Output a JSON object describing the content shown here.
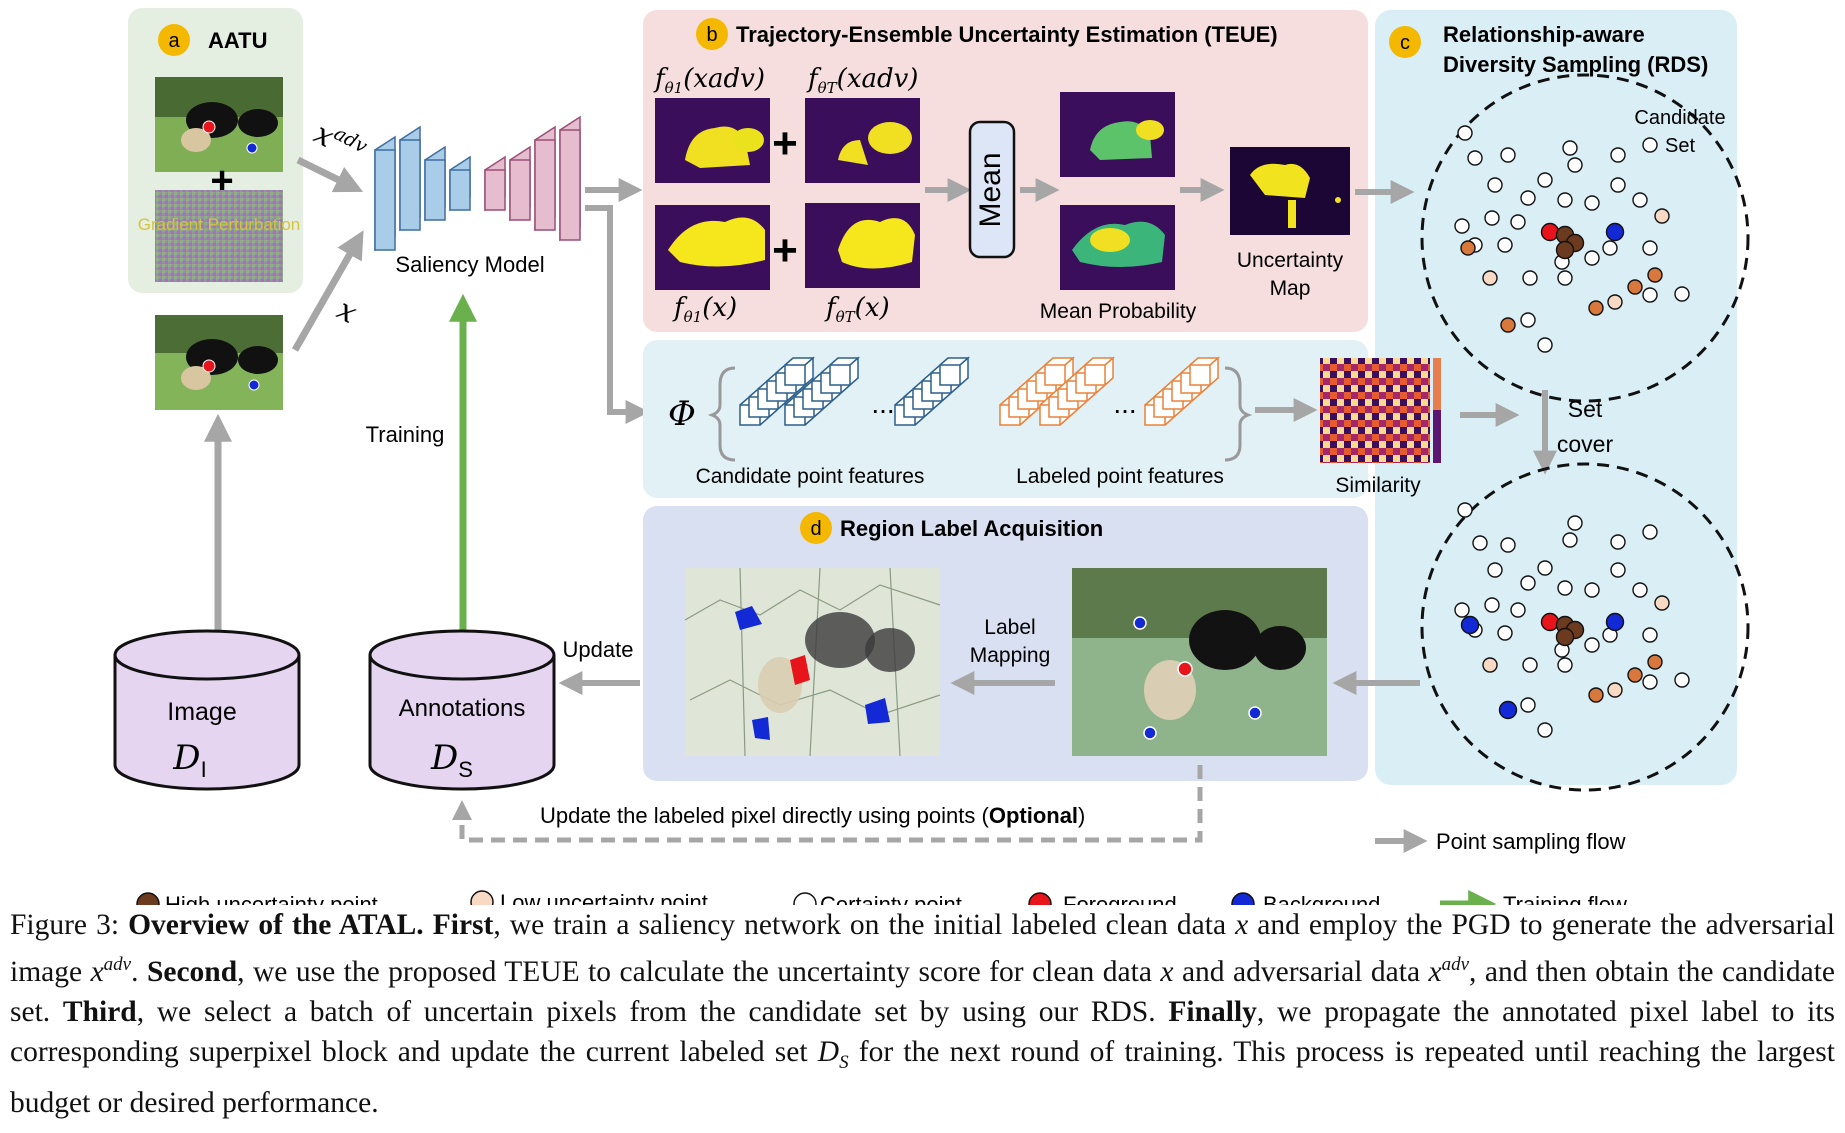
{
  "panels": {
    "a": {
      "badge": "a",
      "title": "AATU",
      "noise_label": "Gradient Perturbation",
      "input_adv": "x",
      "input_adv_sup": "adv",
      "input_clean": "x"
    },
    "b": {
      "badge": "b",
      "title": "Trajectory-Ensemble Uncertainty Estimation (TEUE)",
      "f1_adv": "f",
      "f1_adv_sub": "θ1",
      "f1_adv_arg": "(xadv)",
      "fT_adv": "f",
      "fT_adv_sub": "θT",
      "fT_adv_arg": "(xadv)",
      "f1_clean": "f",
      "f1_clean_sub": "θ1",
      "f1_clean_arg": "(x)",
      "fT_clean": "f",
      "fT_clean_sub": "θT",
      "fT_clean_arg": "(x)",
      "plus": "+",
      "mean": "Mean",
      "mean_probability": "Mean  Probability",
      "uncertainty_map_line1": "Uncertainty",
      "uncertainty_map_line2": "Map"
    },
    "c": {
      "badge": "c",
      "title_line1": "Relationship-aware",
      "title_line2": "Diversity Sampling (RDS)",
      "candidate_set_line1": "Candidate",
      "candidate_set_line2": "Set",
      "set_cover_line1": "Set",
      "set_cover_line2": "cover"
    },
    "d": {
      "badge": "d",
      "title": "Region Label Acquisition",
      "label_mapping_line1": "Label",
      "label_mapping_line2": "Mapping"
    }
  },
  "features": {
    "phi": "Φ",
    "candidate": "Candidate point features",
    "labeled": "Labeled point features",
    "dots": "...",
    "similarity": "Similarity"
  },
  "model": {
    "label": "Saliency Model",
    "training": "Training"
  },
  "databases": {
    "image": {
      "label": "Image",
      "symbol": "D",
      "sub": "I"
    },
    "annotations": {
      "label": "Annotations",
      "symbol": "D",
      "sub": "S"
    }
  },
  "flows": {
    "update": "Update",
    "optional_prefix": "Update the labeled pixel directly using points  (",
    "optional_bold": "Optional",
    "optional_suffix": ")",
    "point_sampling_flow": "Point sampling flow"
  },
  "legend": [
    {
      "label": "High uncertainty point",
      "color": "#6b3a1f",
      "kind": "dot"
    },
    {
      "label": "Low uncertainty point",
      "color": "#f7d9c4",
      "kind": "dot"
    },
    {
      "label": "Certainty point",
      "color": "#ffffff",
      "kind": "dot"
    },
    {
      "label": "Foreground",
      "color": "#e8141b",
      "kind": "dot"
    },
    {
      "label": "Background",
      "color": "#1429d6",
      "kind": "dot"
    },
    {
      "label": "Training flow",
      "color": "#6ab04c",
      "kind": "arrow"
    }
  ],
  "caption": {
    "fig_label": "Figure 3: ",
    "bold1": "Overview of the ATAL. First",
    "t1": ", we train a saliency network on the initial labeled clean data ",
    "v1": "x",
    "t2": " and employ the PGD to generate the adversarial image ",
    "v2": "x",
    "v2sup": "adv",
    "t3": ". ",
    "bold2": "Second",
    "t4": ", we use the proposed TEUE to calculate the uncertainty score for clean data ",
    "v3": "x",
    "t5": " and adversarial data ",
    "v4": "x",
    "v4sup": "adv",
    "t6": ", and then obtain the candidate set. ",
    "bold3": "Third",
    "t7": ", we select a batch of uncertain pixels from the candidate set by using our RDS. ",
    "bold4": "Finally",
    "t8": ", we propagate the annotated pixel label to its corresponding superpixel block and update the current labeled set ",
    "v5": "D",
    "v5sub": "S",
    "t9": " for the next round of training. This process is repeated until reaching the largest budget or desired performance."
  }
}
